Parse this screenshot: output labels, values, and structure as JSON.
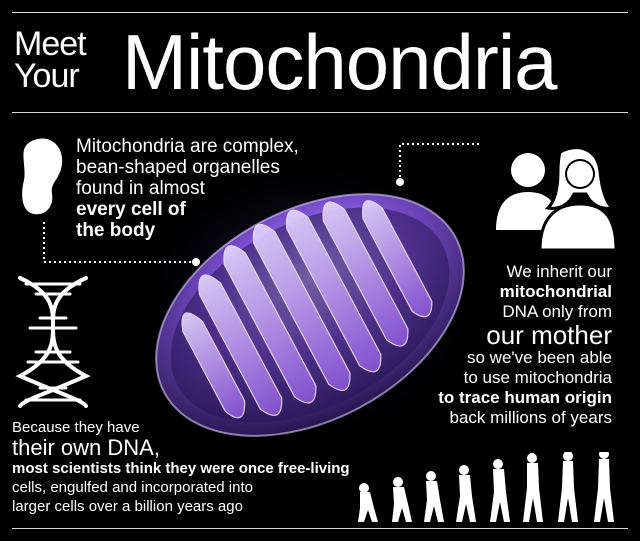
{
  "title": {
    "line1": "Meet",
    "line2": "Your",
    "main": "Mitochondria"
  },
  "fact1": {
    "line1": "Mitochondria are complex,",
    "line2": "bean-shaped organelles",
    "line3": "found in almost",
    "line4": "every cell of",
    "line5": "the body"
  },
  "fact2": {
    "line1": "We inherit our",
    "line2": "mitochondrial",
    "line3": "DNA only from",
    "line4": "our mother",
    "line5": "so we've been able",
    "line6": "to use mitochondria",
    "line7": "to trace human origin",
    "line8": "back millions of years"
  },
  "fact3": {
    "line1": "Because they have",
    "line2": "their own DNA,",
    "line3": "most scientists think they were once free-living",
    "line4": "cells, engulfed and incorporated into",
    "line5": "larger cells over a billion years ago"
  },
  "icons": [
    "bean-icon",
    "people-icon",
    "dna-helix-icon",
    "human-evolution-icon"
  ],
  "colors": {
    "background": "#000000",
    "text": "#ffffff",
    "mito_purple": "#7a4fd0"
  }
}
